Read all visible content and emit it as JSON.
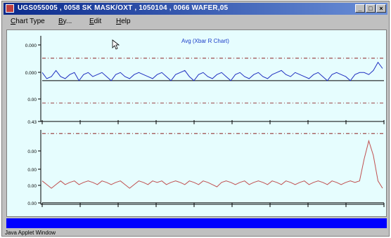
{
  "window": {
    "title": "UGS055005 , 0058 SK MASK/OXT , 1050104 , 0066 WAFER,05",
    "controls": {
      "minimize": "_",
      "maximize": "□",
      "close": "×"
    }
  },
  "menu": {
    "items": [
      {
        "label": "Chart Type",
        "accel": "C"
      },
      {
        "label": "By...",
        "accel": "B"
      },
      {
        "label": "Edit",
        "accel": "E"
      },
      {
        "label": "Help",
        "accel": "H"
      }
    ]
  },
  "chart_data": [
    {
      "type": "line",
      "title": "Avg (Xbar R Chart)",
      "y_tick_labels": [
        "0.000",
        "0.000",
        "0.00",
        "0.43"
      ],
      "series": [
        {
          "color": "#2030c0",
          "values": [
            0.52,
            0.505,
            0.51,
            0.525,
            0.51,
            0.505,
            0.515,
            0.52,
            0.5,
            0.515,
            0.52,
            0.51,
            0.515,
            0.52,
            0.51,
            0.5,
            0.515,
            0.52,
            0.51,
            0.505,
            0.515,
            0.52,
            0.515,
            0.51,
            0.505,
            0.515,
            0.52,
            0.51,
            0.5,
            0.515,
            0.52,
            0.525,
            0.51,
            0.5,
            0.515,
            0.52,
            0.51,
            0.505,
            0.515,
            0.52,
            0.51,
            0.5,
            0.515,
            0.52,
            0.51,
            0.505,
            0.515,
            0.52,
            0.51,
            0.505,
            0.515,
            0.52,
            0.525,
            0.515,
            0.51,
            0.52,
            0.515,
            0.51,
            0.505,
            0.515,
            0.52,
            0.51,
            0.5,
            0.515,
            0.52,
            0.515,
            0.51,
            0.5,
            0.515,
            0.52,
            0.52,
            0.515,
            0.525,
            0.545,
            0.53
          ]
        }
      ],
      "center_line": 0.5,
      "ucl": 0.555,
      "lcl": 0.445,
      "ylim": [
        0.4,
        0.61
      ],
      "line_colors": {
        "center": "#000000",
        "limits": "#800000"
      }
    },
    {
      "type": "line",
      "y_tick_labels": [
        "0.00",
        "0.00",
        "0.00",
        "0.00"
      ],
      "series": [
        {
          "color": "#c05050",
          "values": [
            0.03,
            0.025,
            0.02,
            0.025,
            0.03,
            0.025,
            0.028,
            0.03,
            0.025,
            0.028,
            0.03,
            0.028,
            0.025,
            0.03,
            0.028,
            0.025,
            0.028,
            0.03,
            0.025,
            0.02,
            0.025,
            0.03,
            0.028,
            0.025,
            0.03,
            0.028,
            0.03,
            0.025,
            0.028,
            0.03,
            0.028,
            0.025,
            0.03,
            0.028,
            0.025,
            0.03,
            0.028,
            0.025,
            0.022,
            0.028,
            0.03,
            0.028,
            0.025,
            0.028,
            0.03,
            0.025,
            0.028,
            0.03,
            0.028,
            0.025,
            0.03,
            0.028,
            0.025,
            0.03,
            0.028,
            0.025,
            0.028,
            0.03,
            0.025,
            0.028,
            0.03,
            0.028,
            0.025,
            0.03,
            0.028,
            0.025,
            0.028,
            0.03,
            0.028,
            0.03,
            0.06,
            0.085,
            0.065,
            0.03,
            0.02
          ]
        }
      ],
      "center_line": 0.0,
      "ucl": 0.095,
      "lcl": null,
      "ylim": [
        -0.002,
        0.1
      ],
      "line_colors": {
        "center": "#000000",
        "limits": "#800000"
      }
    }
  ],
  "status": {
    "text": "Java Applet Window"
  },
  "colors": {
    "plot_bg": "#e6fdfe",
    "status_blue": "#0000ff"
  }
}
